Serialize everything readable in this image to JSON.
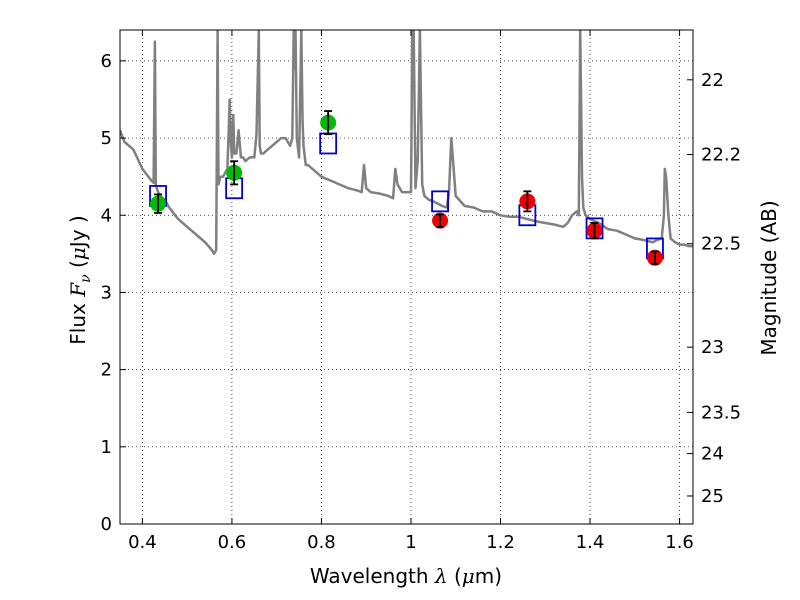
{
  "chart_data": {
    "type": "scatter",
    "xlabel": "Wavelength",
    "xlabel_symbol": "λ",
    "xlabel_unit_open": " (",
    "xlabel_unit_mu": "μ",
    "xlabel_unit_rest": "m)",
    "ylabel": "Flux",
    "ylabel_symbol": "F",
    "ylabel_sub": "ν",
    "ylabel_unit_open": "  (",
    "ylabel_unit_mu": "μ",
    "ylabel_unit_rest": "Jy )",
    "y2label": "Magnitude (AB)",
    "xlim": [
      0.35,
      1.63
    ],
    "ylim": [
      0,
      6.4
    ],
    "grid": true,
    "grid_style": "dotted",
    "x_ticks": [
      0.4,
      0.6,
      0.8,
      1.0,
      1.2,
      1.4,
      1.6
    ],
    "x_tick_labels": [
      "0.4",
      "0.6",
      "0.8",
      "1",
      "1.2",
      "1.4",
      "1.6"
    ],
    "y_ticks": [
      0,
      1,
      2,
      3,
      4,
      5,
      6
    ],
    "y_tick_labels": [
      "0",
      "1",
      "2",
      "3",
      "4",
      "5",
      "6"
    ],
    "mag_ticks": [
      {
        "mag": 22,
        "label": "22"
      },
      {
        "mag": 22.2,
        "label": "22.2"
      },
      {
        "mag": 22.5,
        "label": "22.5"
      },
      {
        "mag": 23,
        "label": "23"
      },
      {
        "mag": 23.5,
        "label": "23.5"
      },
      {
        "mag": 24,
        "label": "24"
      },
      {
        "mag": 25,
        "label": "25"
      }
    ],
    "colors": {
      "model": "#808080",
      "green_points": "#00bb00",
      "red_points": "#ee0000",
      "model_boxes": "#0000cc",
      "errorbar": "#000000"
    },
    "series": [
      {
        "kind": "observed",
        "color": "green",
        "points": [
          {
            "x": 0.435,
            "y": 4.15,
            "err": 0.12
          },
          {
            "x": 0.605,
            "y": 4.55,
            "err": 0.15
          },
          {
            "x": 0.815,
            "y": 5.2,
            "err": 0.15
          }
        ]
      },
      {
        "kind": "observed",
        "color": "red",
        "points": [
          {
            "x": 1.065,
            "y": 3.93,
            "err": 0.08
          },
          {
            "x": 1.26,
            "y": 4.18,
            "err": 0.13
          },
          {
            "x": 1.41,
            "y": 3.8,
            "err": 0.1
          },
          {
            "x": 1.545,
            "y": 3.45,
            "err": 0.08
          }
        ]
      },
      {
        "kind": "model_boxes",
        "points": [
          {
            "x": 0.435,
            "y": 4.25
          },
          {
            "x": 0.605,
            "y": 4.35
          },
          {
            "x": 0.815,
            "y": 4.93
          },
          {
            "x": 1.065,
            "y": 4.18
          },
          {
            "x": 1.26,
            "y": 4.0
          },
          {
            "x": 1.41,
            "y": 3.83
          },
          {
            "x": 1.545,
            "y": 3.57
          }
        ]
      },
      {
        "kind": "model_spectrum",
        "x": [
          0.35,
          0.36,
          0.38,
          0.4,
          0.42,
          0.425,
          0.428,
          0.43,
          0.432,
          0.435,
          0.44,
          0.45,
          0.46,
          0.48,
          0.5,
          0.52,
          0.54,
          0.555,
          0.56,
          0.565,
          0.568,
          0.57,
          0.572,
          0.575,
          0.578,
          0.58,
          0.59,
          0.595,
          0.598,
          0.6,
          0.603,
          0.605,
          0.61,
          0.615,
          0.62,
          0.625,
          0.63,
          0.64,
          0.65,
          0.655,
          0.66,
          0.662,
          0.665,
          0.67,
          0.68,
          0.69,
          0.7,
          0.71,
          0.72,
          0.73,
          0.735,
          0.738,
          0.74,
          0.742,
          0.745,
          0.75,
          0.755,
          0.758,
          0.76,
          0.765,
          0.77,
          0.78,
          0.79,
          0.8,
          0.82,
          0.84,
          0.86,
          0.88,
          0.89,
          0.895,
          0.9,
          0.91,
          0.93,
          0.95,
          0.96,
          0.965,
          0.97,
          0.98,
          0.99,
          1.0,
          1.003,
          1.006,
          1.01,
          1.015,
          1.02,
          1.025,
          1.03,
          1.04,
          1.05,
          1.07,
          1.08,
          1.085,
          1.09,
          1.1,
          1.12,
          1.14,
          1.16,
          1.18,
          1.2,
          1.22,
          1.24,
          1.26,
          1.28,
          1.3,
          1.32,
          1.34,
          1.35,
          1.36,
          1.37,
          1.375,
          1.378,
          1.38,
          1.382,
          1.385,
          1.39,
          1.4,
          1.42,
          1.44,
          1.46,
          1.48,
          1.5,
          1.52,
          1.54,
          1.55,
          1.56,
          1.565,
          1.567,
          1.57,
          1.575,
          1.58,
          1.59,
          1.6,
          1.61,
          1.62,
          1.63
        ],
        "y": [
          5.1,
          4.95,
          4.85,
          4.6,
          4.45,
          4.42,
          6.25,
          4.4,
          4.35,
          4.3,
          4.25,
          4.2,
          4.1,
          3.95,
          3.85,
          3.75,
          3.65,
          3.55,
          3.5,
          3.55,
          6.4,
          4.4,
          4.45,
          4.5,
          4.5,
          4.5,
          4.6,
          5.5,
          4.9,
          4.75,
          5.3,
          4.8,
          4.8,
          5.1,
          4.75,
          4.75,
          4.7,
          4.75,
          4.75,
          5.05,
          6.4,
          4.9,
          4.8,
          4.8,
          4.85,
          4.9,
          4.95,
          5.0,
          5.0,
          4.9,
          5.0,
          6.4,
          5.9,
          6.4,
          5.0,
          4.75,
          6.4,
          5.2,
          4.9,
          4.65,
          4.65,
          4.6,
          4.55,
          4.5,
          4.45,
          4.4,
          4.35,
          4.32,
          4.3,
          4.65,
          4.35,
          4.3,
          4.28,
          4.25,
          4.22,
          4.6,
          4.4,
          4.3,
          4.3,
          4.3,
          6.4,
          6.4,
          4.35,
          4.7,
          6.4,
          4.4,
          4.25,
          4.2,
          4.18,
          4.12,
          4.1,
          4.3,
          5.0,
          4.25,
          4.12,
          4.1,
          4.05,
          4.05,
          4.0,
          3.98,
          3.98,
          3.95,
          3.92,
          3.9,
          3.88,
          3.85,
          3.9,
          4.0,
          4.05,
          4.0,
          6.4,
          5.5,
          4.5,
          4.1,
          4.0,
          3.95,
          3.9,
          3.82,
          3.8,
          3.75,
          3.7,
          3.68,
          3.65,
          3.68,
          3.7,
          4.0,
          4.6,
          4.5,
          4.0,
          3.7,
          3.65,
          3.62,
          3.62,
          3.6,
          3.6
        ]
      }
    ]
  }
}
